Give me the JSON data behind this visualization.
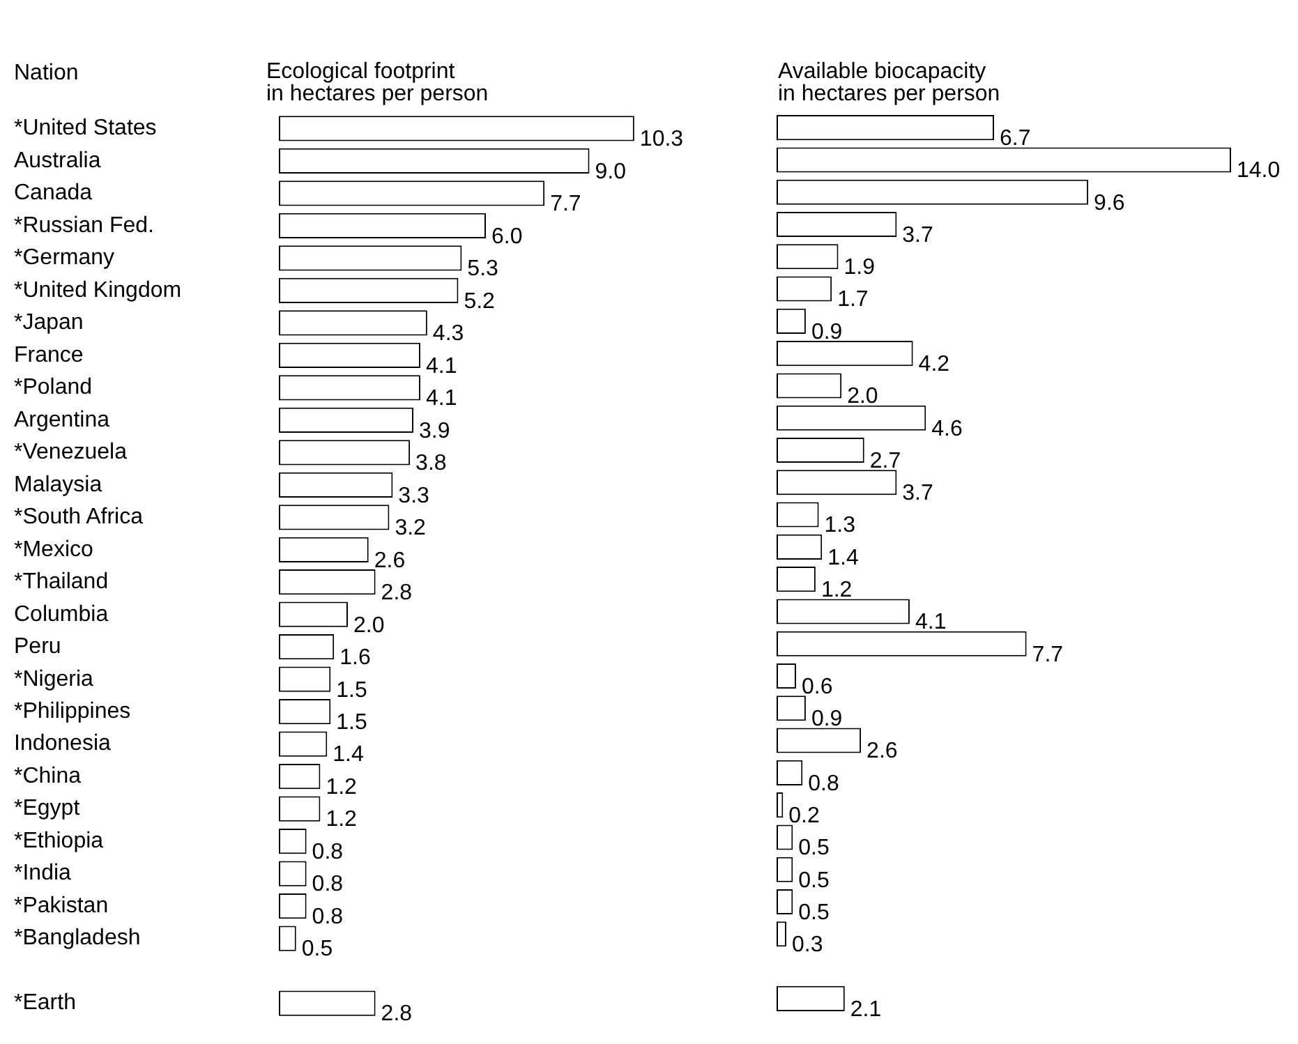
{
  "chart_data": [
    {
      "type": "bar",
      "orientation": "horizontal",
      "title": "Ecological footprint\nin hectares per person",
      "ylabel": "Nation",
      "tick_labels": "y",
      "grid": false,
      "legend": false,
      "categories": [
        "*United States",
        "Australia",
        "Canada",
        "*Russian Fed.",
        "*Germany",
        "*United Kingdom",
        "*Japan",
        "France",
        "*Poland",
        "Argentina",
        "*Venezuela",
        "Malaysia",
        "*South Africa",
        "*Mexico",
        "*Thailand",
        "Columbia",
        "Peru",
        "*Nigeria",
        "*Philippines",
        "Indonesia",
        "*China",
        "*Egypt",
        "*Ethiopia",
        "*India",
        "*Pakistan",
        "*Bangladesh",
        null,
        "*Earth"
      ],
      "series": [
        {
          "color": "#ffffff",
          "values": [
            10.3,
            9.0,
            7.7,
            6.0,
            5.3,
            5.2,
            4.3,
            4.1,
            4.1,
            3.9,
            3.8,
            3.3,
            3.2,
            2.6,
            2.8,
            2.0,
            1.6,
            1.5,
            1.5,
            1.4,
            1.2,
            1.2,
            0.8,
            0.8,
            0.8,
            0.5,
            null,
            2.8
          ],
          "value_labels": [
            "10.3",
            "9.0",
            "7.7",
            "6.0",
            "5.3",
            "5.2",
            "4.3",
            "4.1",
            "4.1",
            "3.9",
            "3.8",
            "3.3",
            "3.2",
            "2.6",
            "2.8",
            "2.0",
            "1.6",
            "1.5",
            "1.5",
            "1.4",
            "1.2",
            "1.2",
            "0.8",
            "0.8",
            "0.8",
            "0.5",
            null,
            "2.8"
          ]
        }
      ]
    },
    {
      "type": "bar",
      "orientation": "horizontal",
      "title": "Available biocapacity\nin hectares per person",
      "tick_labels": false,
      "grid": false,
      "legend": false,
      "categories": [
        null,
        null,
        null,
        null,
        null,
        null,
        null,
        null,
        null,
        null,
        null,
        null,
        null,
        null,
        null,
        null,
        null,
        null,
        null,
        null,
        null,
        null,
        null,
        null,
        null,
        null,
        null,
        null
      ],
      "series": [
        {
          "color": "#ffffff",
          "values": [
            6.7,
            14.0,
            9.6,
            3.7,
            1.9,
            1.7,
            0.9,
            4.2,
            2.0,
            4.6,
            2.7,
            3.7,
            1.3,
            1.4,
            1.2,
            4.1,
            7.7,
            0.6,
            0.9,
            2.6,
            0.8,
            0.2,
            0.5,
            0.5,
            0.5,
            0.3,
            null,
            2.1
          ],
          "value_labels": [
            "6.7",
            "14.0",
            "9.6",
            "3.7",
            "1.9",
            "1.7",
            "0.9",
            "4.2",
            "2.0",
            "4.6",
            "2.7",
            "3.7",
            "1.3",
            "1.4",
            "1.2",
            "4.1",
            "7.7",
            "0.6",
            "0.9",
            "2.6",
            "0.8",
            "0.2",
            "0.5",
            "0.5",
            "0.5",
            "0.3",
            null,
            "2.1"
          ]
        }
      ]
    }
  ]
}
